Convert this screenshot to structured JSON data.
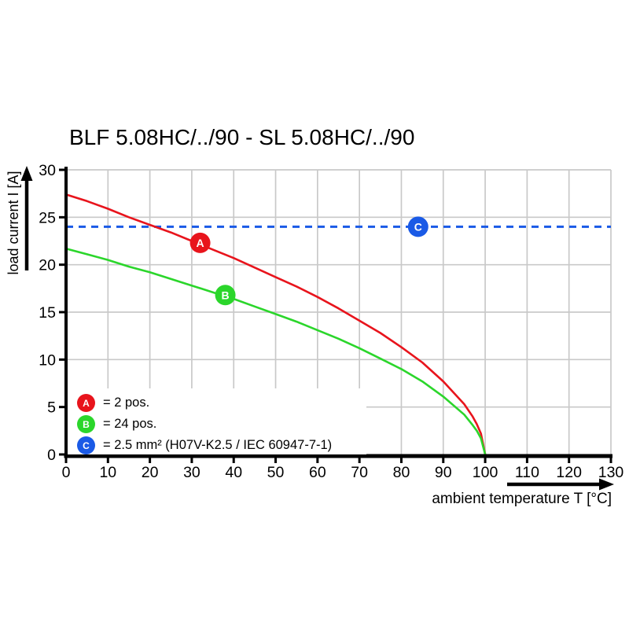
{
  "title": "BLF 5.08HC/../90 - SL 5.08HC/../90",
  "colors": {
    "background": "#ffffff",
    "grid": "#c9c9c9",
    "axis": "#000000",
    "series_a": "#e8141c",
    "series_b": "#2bd62b",
    "series_c": "#1a5ae6"
  },
  "chart_data": {
    "type": "line",
    "title": "BLF 5.08HC/../90 - SL 5.08HC/../90",
    "xlabel": "ambient temperature T [°C]",
    "ylabel": "load current I [A]",
    "xlim": [
      0,
      130
    ],
    "ylim": [
      0,
      30
    ],
    "xticks": [
      0,
      10,
      20,
      30,
      40,
      50,
      60,
      70,
      80,
      90,
      100,
      110,
      120,
      130
    ],
    "yticks": [
      0,
      5,
      10,
      15,
      20,
      25,
      30
    ],
    "grid": true,
    "legend_position": "lower-left-inside",
    "series": [
      {
        "name": "A",
        "label": "2 pos.",
        "color": "#e8141c",
        "style": "solid",
        "points": [
          [
            0,
            27.4
          ],
          [
            5,
            26.7
          ],
          [
            10,
            25.9
          ],
          [
            15,
            25.0
          ],
          [
            20,
            24.2
          ],
          [
            25,
            23.4
          ],
          [
            30,
            22.5
          ],
          [
            35,
            21.6
          ],
          [
            40,
            20.7
          ],
          [
            45,
            19.7
          ],
          [
            50,
            18.7
          ],
          [
            55,
            17.7
          ],
          [
            60,
            16.6
          ],
          [
            65,
            15.4
          ],
          [
            70,
            14.1
          ],
          [
            75,
            12.8
          ],
          [
            80,
            11.3
          ],
          [
            85,
            9.7
          ],
          [
            90,
            7.7
          ],
          [
            95,
            5.3
          ],
          [
            97,
            4.0
          ],
          [
            98,
            3.2
          ],
          [
            99,
            2.2
          ],
          [
            100,
            0
          ]
        ],
        "marker": {
          "x": 32,
          "y": 22.3
        }
      },
      {
        "name": "B",
        "label": "24 pos.",
        "color": "#2bd62b",
        "style": "solid",
        "points": [
          [
            0,
            21.7
          ],
          [
            5,
            21.1
          ],
          [
            10,
            20.5
          ],
          [
            15,
            19.8
          ],
          [
            20,
            19.2
          ],
          [
            25,
            18.5
          ],
          [
            30,
            17.8
          ],
          [
            35,
            17.1
          ],
          [
            40,
            16.4
          ],
          [
            45,
            15.6
          ],
          [
            50,
            14.8
          ],
          [
            55,
            14.0
          ],
          [
            60,
            13.1
          ],
          [
            65,
            12.2
          ],
          [
            70,
            11.2
          ],
          [
            75,
            10.1
          ],
          [
            80,
            9.0
          ],
          [
            85,
            7.7
          ],
          [
            90,
            6.1
          ],
          [
            95,
            4.2
          ],
          [
            97,
            3.1
          ],
          [
            98,
            2.5
          ],
          [
            99,
            1.7
          ],
          [
            100,
            0
          ]
        ],
        "marker": {
          "x": 38,
          "y": 16.8
        }
      },
      {
        "name": "C",
        "label": "2.5 mm² (H07V-K2.5 / IEC 60947-7-1)",
        "color": "#1a5ae6",
        "style": "dashed",
        "points": [
          [
            0,
            24
          ],
          [
            130,
            24
          ]
        ],
        "marker": {
          "x": 84,
          "y": 24
        }
      }
    ]
  },
  "legend": {
    "items": [
      {
        "letter": "A",
        "label": "= 2 pos."
      },
      {
        "letter": "B",
        "label": "= 24 pos."
      },
      {
        "letter": "C",
        "label": "= 2.5 mm² (H07V-K2.5 / IEC 60947-7-1)"
      }
    ]
  }
}
